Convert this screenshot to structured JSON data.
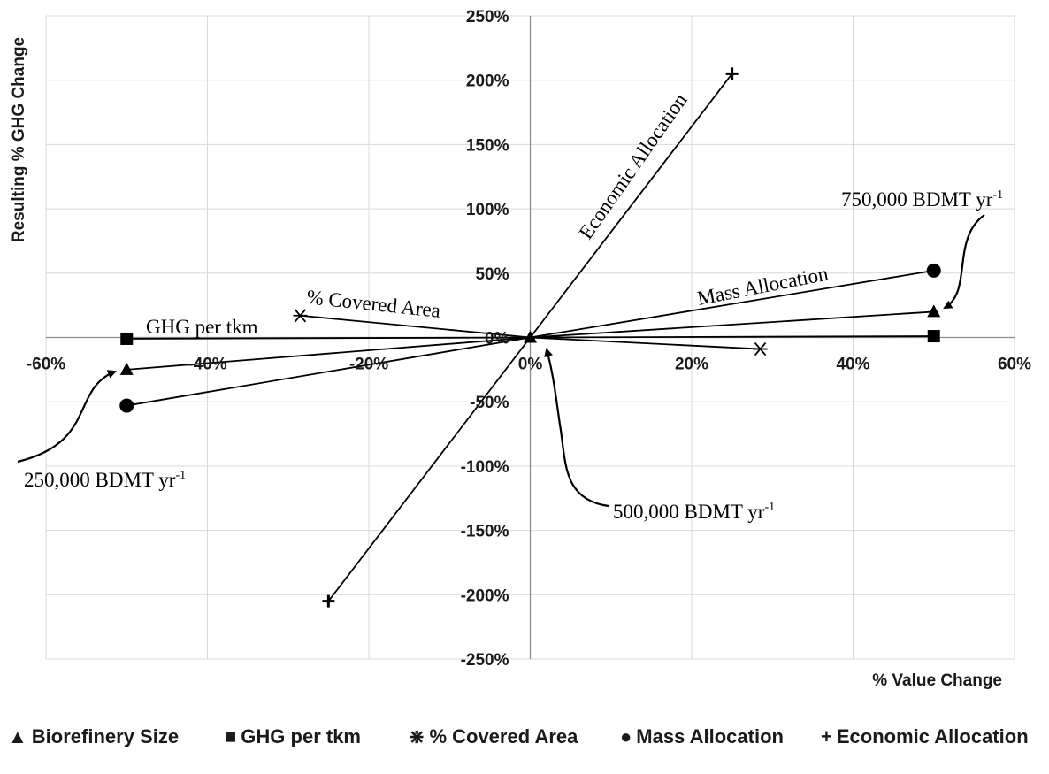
{
  "chart_data": {
    "type": "scatter",
    "xlabel": "% Value Change",
    "ylabel": "Resulting % GHG Change",
    "xlim": [
      -60,
      60
    ],
    "ylim": [
      -250,
      250
    ],
    "x_ticks": [
      "-60%",
      "-40%",
      "-20%",
      "0%",
      "20%",
      "40%",
      "60%"
    ],
    "y_ticks": [
      "250%",
      "200%",
      "150%",
      "100%",
      "50%",
      "0%",
      "-50%",
      "-100%",
      "-150%",
      "-200%",
      "-250%"
    ],
    "grid": true,
    "legend_position": "bottom",
    "series": [
      {
        "name": "Biorefinery Size",
        "marker": "triangle",
        "x": [
          -50,
          0,
          50
        ],
        "y": [
          -25,
          0,
          20
        ]
      },
      {
        "name": "GHG per tkm",
        "marker": "square",
        "x": [
          -50,
          0,
          50
        ],
        "y": [
          -1,
          0,
          1
        ]
      },
      {
        "name": "% Covered Area",
        "marker": "asterisk",
        "x": [
          -28.5,
          0,
          28.5
        ],
        "y": [
          17,
          0,
          -9
        ]
      },
      {
        "name": "Mass Allocation",
        "marker": "circle",
        "x": [
          -50,
          0,
          50
        ],
        "y": [
          -53,
          0,
          52
        ]
      },
      {
        "name": "Economic Allocation",
        "marker": "plus",
        "x": [
          -25,
          0,
          25
        ],
        "y": [
          -205,
          0,
          205
        ]
      }
    ],
    "annotations": {
      "economic_allocation": "Economic Allocation",
      "mass_allocation": "Mass Allocation",
      "covered_area": "% Covered Area",
      "ghg_per_tkm": "GHG per tkm",
      "size_750": "750,000 BDMT yr",
      "size_500": "500,000 BDMT yr",
      "size_250": "250,000 BDMT yr",
      "superscript": "-1"
    }
  },
  "legend": [
    {
      "symbol": "▲",
      "label": "Biorefinery Size"
    },
    {
      "symbol": "■",
      "label": "GHG per tkm"
    },
    {
      "symbol": "⋇",
      "label": "% Covered Area"
    },
    {
      "symbol": "●",
      "label": "Mass Allocation"
    },
    {
      "symbol": "+",
      "label": "Economic Allocation"
    }
  ]
}
